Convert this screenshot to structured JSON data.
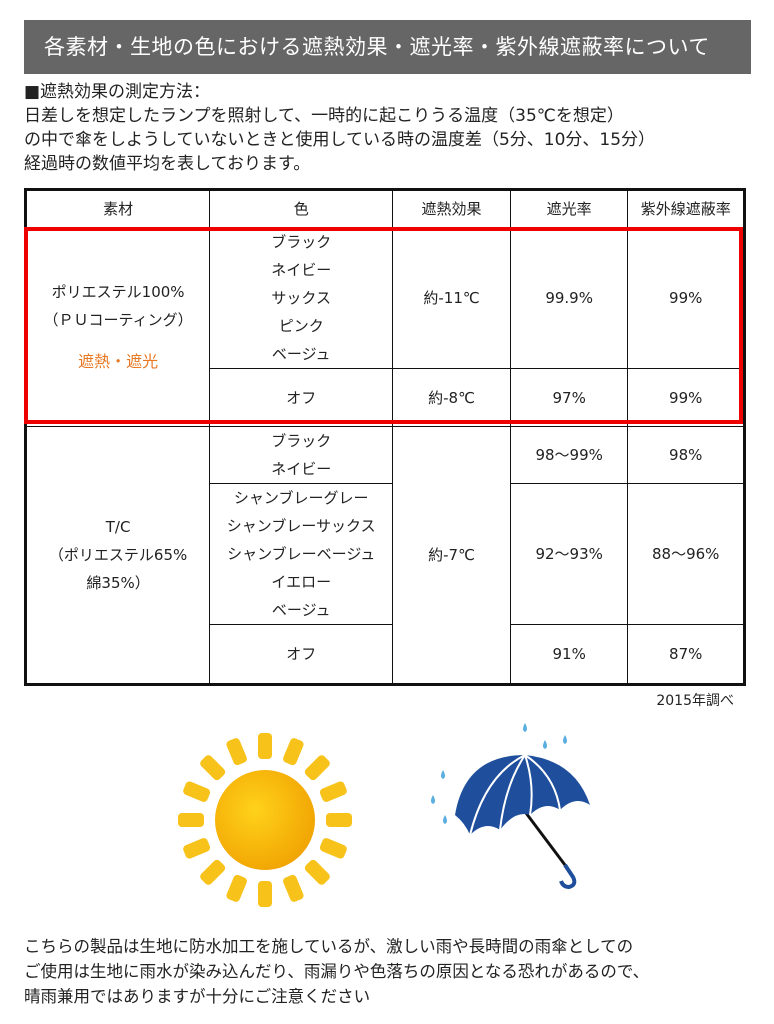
{
  "title": "各素材・生地の色における遮熱効果・遮光率・紫外線遮蔽率について",
  "intro": {
    "heading": "■遮熱効果の測定方法：",
    "lines": [
      "日差しを想定したランプを照射して、一時的に起こりうる温度（35℃を想定）",
      "の中で傘をしようしていないときと使用している時の温度差（5分、10分、15分）",
      "経過時の数値平均を表しております。"
    ]
  },
  "table": {
    "headers": [
      "素材",
      "色",
      "遮熱効果",
      "遮光率",
      "紫外線遮蔽率"
    ],
    "poly": {
      "material1": "ポリエステル100%",
      "material2": "（ＰＵコーティング）",
      "badge": "遮熱・遮光",
      "colors": [
        "ブラック",
        "ネイビー",
        "サックス",
        "ピンク",
        "ベージュ"
      ],
      "heat": "約-11℃",
      "light": "99.9%",
      "uv": "99%",
      "off": "オフ",
      "off_heat": "約-8℃",
      "off_light": "97%",
      "off_uv": "99%"
    },
    "tc": {
      "material1": "T/C",
      "material2": "（ポリエステル65%",
      "material3": "綿35%）",
      "colorsA": [
        "ブラック",
        "ネイビー"
      ],
      "lightA": "98〜99%",
      "uvA": "98%",
      "colorsB": [
        "シャンブレーグレー",
        "シャンブレーサックス",
        "シャンブレーベージュ",
        "イエロー",
        "ベージュ"
      ],
      "lightB": "92〜93%",
      "uvB": "88〜96%",
      "heat": "約-7℃",
      "off": "オフ",
      "off_light": "91%",
      "off_uv": "87%"
    }
  },
  "note": "2015年調べ",
  "footer": [
    "こちらの製品は生地に防水加工を施しているが、激しい雨や長時間の雨傘としての",
    "ご使用は生地に雨水が染み込んだり、雨漏りや色落ちの原因となる恐れがあるので、",
    "晴雨兼用ではありますが十分にご注意ください"
  ],
  "colors": {
    "banner": "#666666",
    "highlight": "#e00000",
    "accent": "#e87722",
    "sun": "#f5b800",
    "umbrella": "#1f4f9c"
  }
}
